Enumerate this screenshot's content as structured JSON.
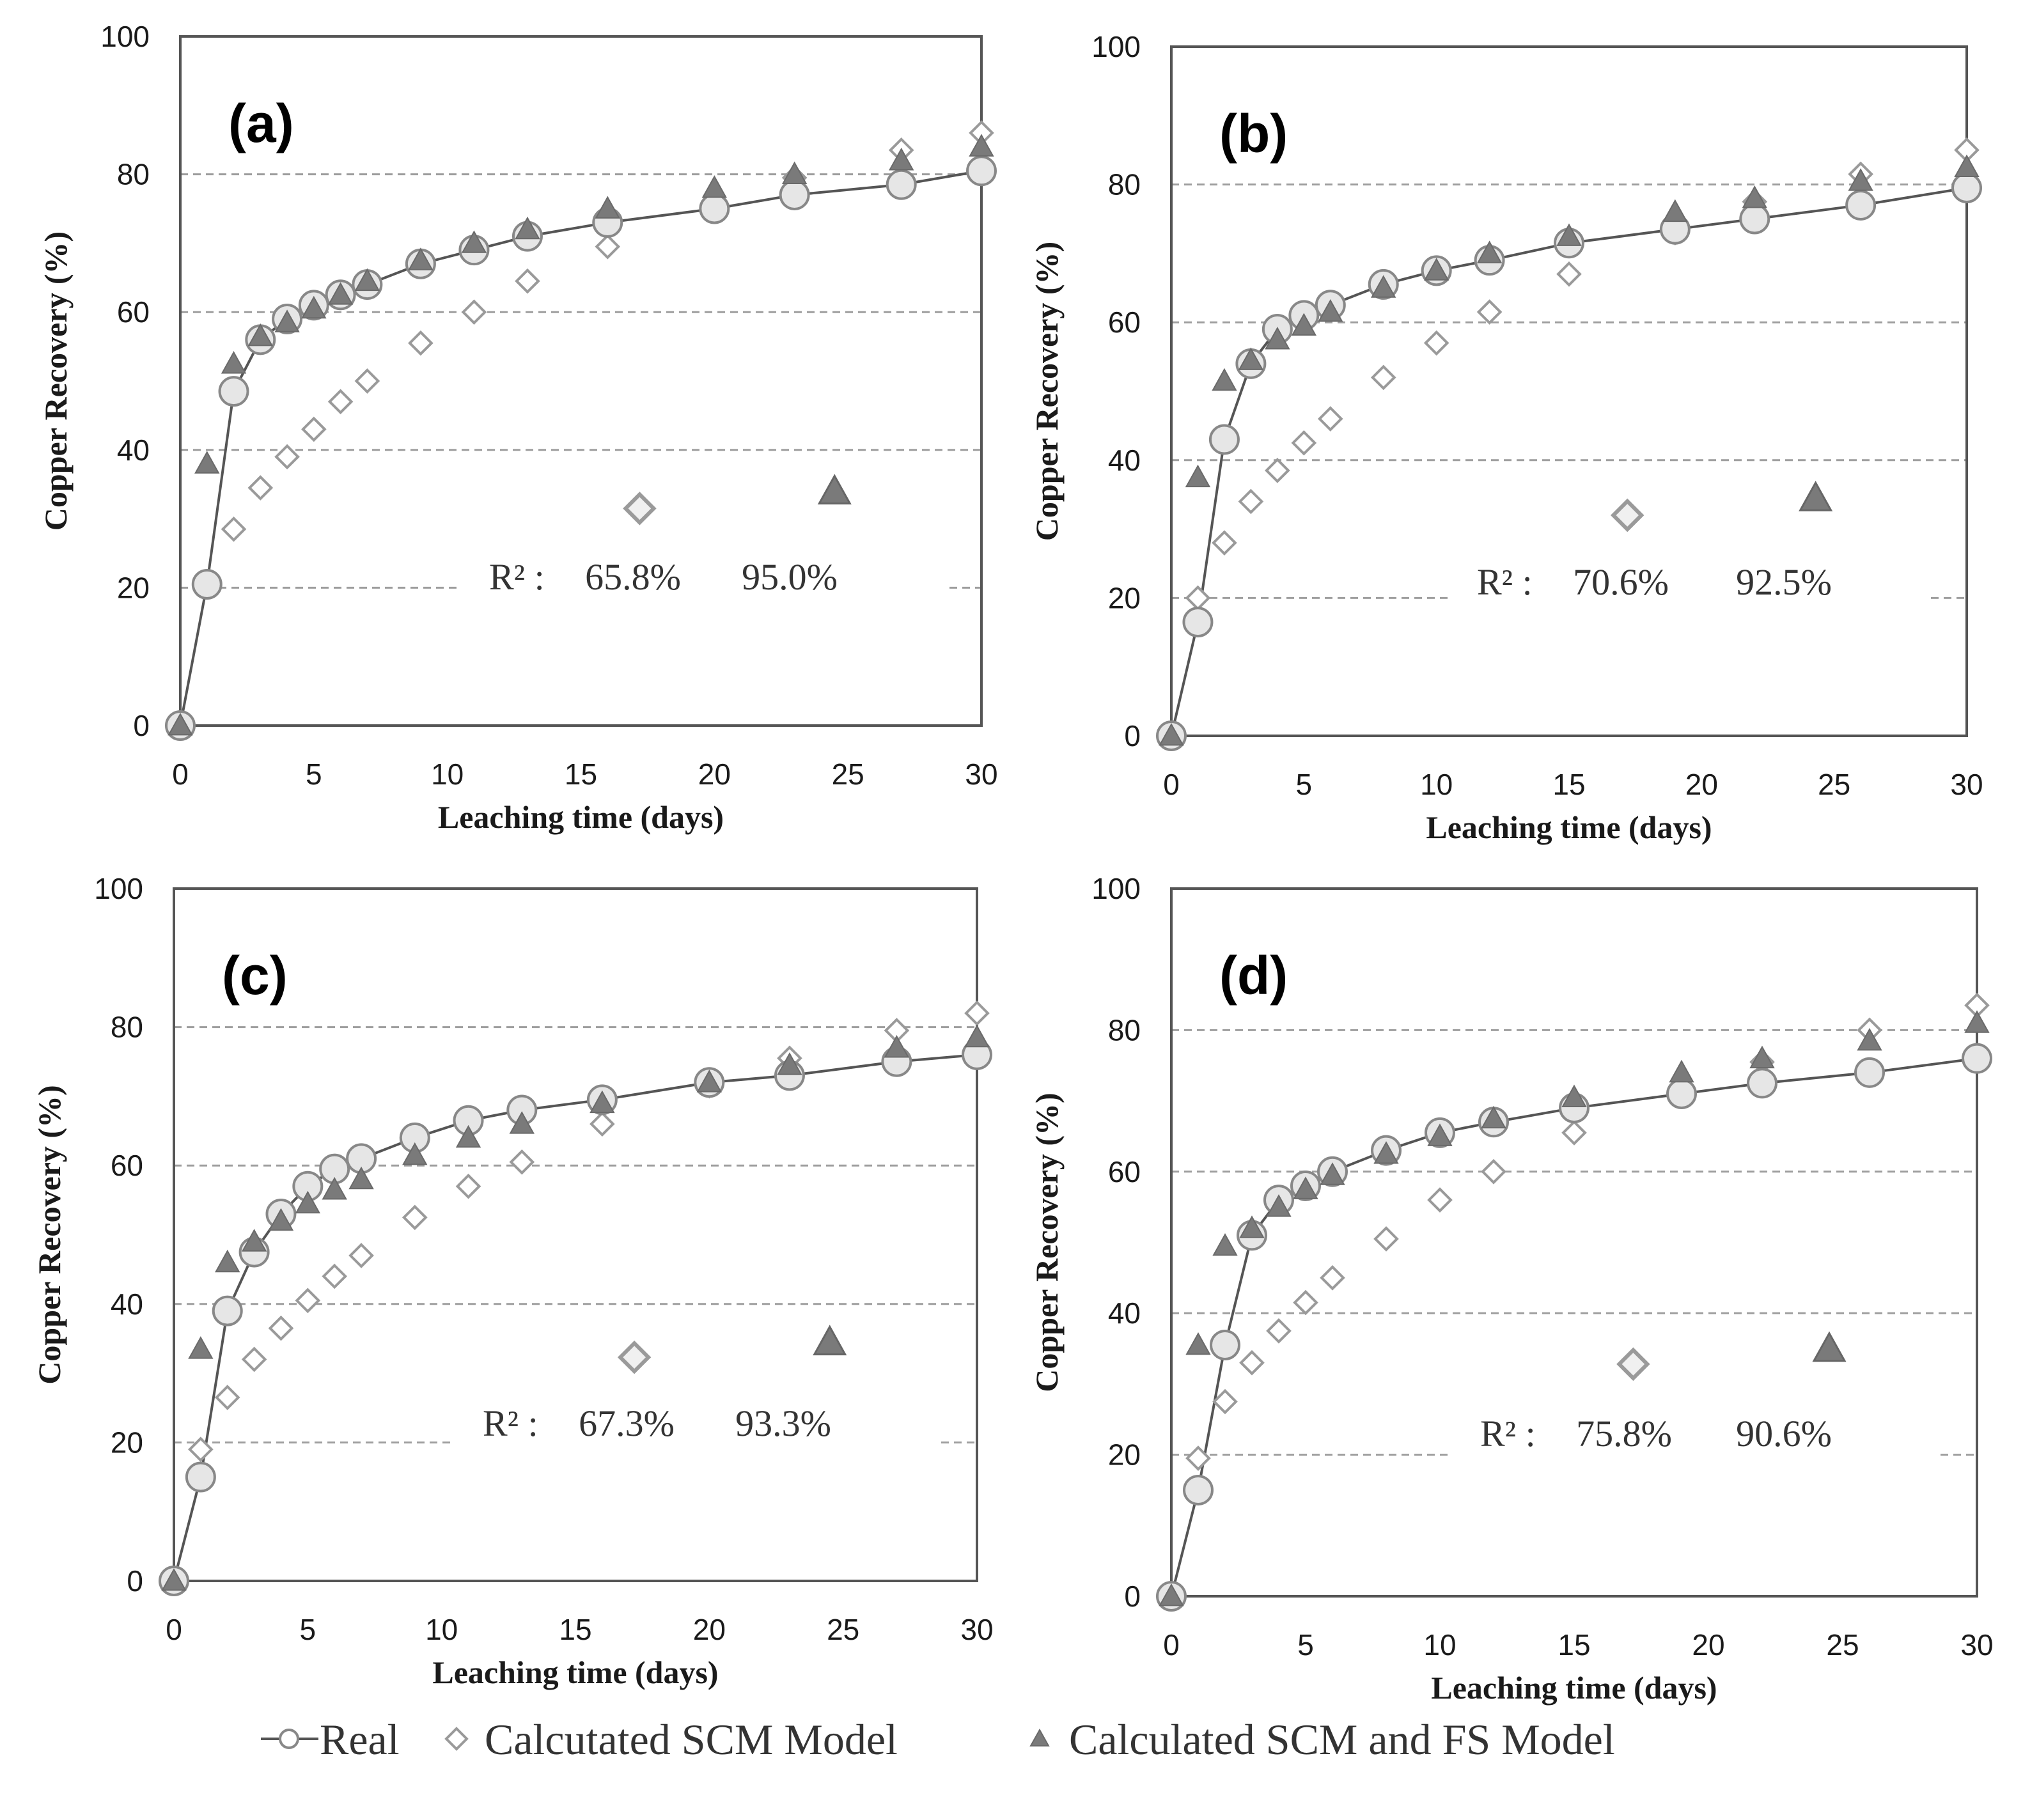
{
  "legend": {
    "real": "Real",
    "scm": "Calcutated SCM Model",
    "fs": "Calculated SCM and FS Model"
  },
  "colors": {
    "real_fill": "#e6e6e6",
    "real_stroke": "#888888",
    "line": "#555555",
    "scm_stroke": "#9a9a9a",
    "fs_fill": "#7a7a7a",
    "grid": "#9e9e9e",
    "frame": "#555555"
  },
  "chart_data": [
    {
      "type": "scatter",
      "panel_label": "(a)",
      "xlabel": "Leaching time (days)",
      "ylabel": "Copper Recovery (%)",
      "xlim": [
        0,
        30
      ],
      "ylim": [
        0,
        100
      ],
      "xticks": [
        0,
        5,
        10,
        15,
        20,
        25,
        30
      ],
      "yticks": [
        0,
        20,
        40,
        60,
        80,
        100
      ],
      "grid_y": [
        20,
        40,
        60,
        80
      ],
      "r2_label": "R² :",
      "r2_scm": "65.8%",
      "r2_fs": "95.0%",
      "series": [
        {
          "name": "Real",
          "x": [
            0,
            1,
            2,
            3,
            4,
            5,
            6,
            7,
            9,
            11,
            13,
            16,
            20,
            23,
            27,
            30
          ],
          "y": [
            0,
            20.5,
            48.5,
            56,
            59,
            61,
            62.5,
            64,
            67,
            69,
            71,
            73,
            75,
            77,
            78.5,
            80.5
          ]
        },
        {
          "name": "Calcutated SCM Model",
          "x": [
            0,
            1,
            2,
            3,
            4,
            5,
            6,
            7,
            9,
            11,
            13,
            16,
            20,
            23,
            27,
            30
          ],
          "y": [
            0,
            20.5,
            28.5,
            34.5,
            39,
            43,
            47,
            50,
            55.5,
            60,
            64.5,
            69.5,
            75.5,
            79.5,
            83.5,
            86
          ]
        },
        {
          "name": "Calculated SCM and FS Model",
          "x": [
            0,
            1,
            2,
            3,
            4,
            5,
            6,
            7,
            9,
            11,
            13,
            16,
            20,
            23,
            27,
            30
          ],
          "y": [
            0,
            38,
            52.5,
            56.5,
            58.5,
            60.5,
            62.5,
            64.5,
            67.5,
            70,
            72,
            75,
            78,
            80,
            82,
            84
          ]
        }
      ]
    },
    {
      "type": "scatter",
      "panel_label": "(b)",
      "xlabel": "Leaching time (days)",
      "ylabel": "Copper Recovery (%)",
      "xlim": [
        0,
        30
      ],
      "ylim": [
        0,
        100
      ],
      "xticks": [
        0,
        5,
        10,
        15,
        20,
        25,
        30
      ],
      "yticks": [
        0,
        20,
        40,
        60,
        80,
        100
      ],
      "grid_y": [
        20,
        40,
        60,
        80
      ],
      "r2_label": "R² :",
      "r2_scm": "70.6%",
      "r2_fs": "92.5%",
      "series": [
        {
          "name": "Real",
          "x": [
            0,
            1,
            2,
            3,
            4,
            5,
            6,
            8,
            10,
            12,
            15,
            19,
            22,
            26,
            30
          ],
          "y": [
            0,
            16.5,
            43,
            54,
            59,
            61,
            62.5,
            65.5,
            67.5,
            69,
            71.5,
            73.5,
            75,
            77,
            79.5
          ]
        },
        {
          "name": "Calcutated SCM Model",
          "x": [
            0,
            1,
            2,
            3,
            4,
            5,
            6,
            8,
            10,
            12,
            15,
            19,
            22,
            26,
            30
          ],
          "y": [
            0,
            20,
            28,
            34,
            38.5,
            42.5,
            46,
            52,
            57,
            61.5,
            67,
            73,
            77.5,
            81.5,
            85
          ]
        },
        {
          "name": "Calculated SCM and FS Model",
          "x": [
            0,
            1,
            2,
            3,
            4,
            5,
            6,
            8,
            10,
            12,
            15,
            19,
            22,
            26,
            30
          ],
          "y": [
            0,
            37.5,
            51.5,
            54.5,
            57.5,
            59.5,
            61.5,
            65,
            67.5,
            70,
            72.5,
            76,
            78,
            80.5,
            82.5
          ]
        }
      ]
    },
    {
      "type": "scatter",
      "panel_label": "(c)",
      "xlabel": "Leaching time (days)",
      "ylabel": "Copper Recovery (%)",
      "xlim": [
        0,
        30
      ],
      "ylim": [
        0,
        100
      ],
      "xticks": [
        0,
        5,
        10,
        15,
        20,
        25,
        30
      ],
      "yticks": [
        0,
        20,
        40,
        60,
        80,
        100
      ],
      "grid_y": [
        20,
        40,
        60,
        80
      ],
      "r2_label": "R² :",
      "r2_scm": "67.3%",
      "r2_fs": "93.3%",
      "series": [
        {
          "name": "Real",
          "x": [
            0,
            1,
            2,
            3,
            4,
            5,
            6,
            7,
            9,
            11,
            13,
            16,
            20,
            23,
            27,
            30
          ],
          "y": [
            0,
            15,
            39,
            47.5,
            53,
            57,
            59.5,
            61,
            64,
            66.5,
            68,
            69.5,
            72,
            73,
            75,
            76
          ]
        },
        {
          "name": "Calcutated SCM Model",
          "x": [
            0,
            1,
            2,
            3,
            4,
            5,
            6,
            7,
            9,
            11,
            13,
            16,
            20,
            23,
            27,
            30
          ],
          "y": [
            0,
            19,
            26.5,
            32,
            36.5,
            40.5,
            44,
            47,
            52.5,
            57,
            60.5,
            66,
            71.5,
            75.5,
            79.5,
            82
          ]
        },
        {
          "name": "Calculated SCM and FS Model",
          "x": [
            0,
            1,
            2,
            3,
            4,
            5,
            6,
            7,
            9,
            11,
            13,
            16,
            20,
            23,
            27,
            30
          ],
          "y": [
            0,
            33.5,
            46,
            49,
            52,
            54.5,
            56.5,
            58,
            61.5,
            64,
            66,
            69,
            72,
            74.5,
            77,
            78.5
          ]
        }
      ]
    },
    {
      "type": "scatter",
      "panel_label": "(d)",
      "xlabel": "Leaching time (days)",
      "ylabel": "Copper Recovery (%)",
      "xlim": [
        0,
        30
      ],
      "ylim": [
        0,
        100
      ],
      "xticks": [
        0,
        5,
        10,
        15,
        20,
        25,
        30
      ],
      "yticks": [
        0,
        20,
        40,
        60,
        80,
        100
      ],
      "grid_y": [
        20,
        40,
        60,
        80
      ],
      "r2_label": "R² :",
      "r2_scm": "75.8%",
      "r2_fs": "90.6%",
      "series": [
        {
          "name": "Real",
          "x": [
            0,
            1,
            2,
            3,
            4,
            5,
            6,
            8,
            10,
            12,
            15,
            19,
            22,
            26,
            30
          ],
          "y": [
            0,
            15,
            35.5,
            51,
            56,
            58,
            60,
            63,
            65.5,
            67,
            69,
            71,
            72.5,
            74,
            76
          ]
        },
        {
          "name": "Calcutated SCM Model",
          "x": [
            0,
            1,
            2,
            3,
            4,
            5,
            6,
            8,
            10,
            12,
            15,
            19,
            22,
            26,
            30
          ],
          "y": [
            0,
            19.5,
            27.5,
            33,
            37.5,
            41.5,
            45,
            50.5,
            56,
            60,
            65.5,
            71.5,
            75.5,
            80,
            83.5
          ]
        },
        {
          "name": "Calculated SCM and FS Model",
          "x": [
            0,
            1,
            2,
            3,
            4,
            5,
            6,
            8,
            10,
            12,
            15,
            19,
            22,
            26,
            30
          ],
          "y": [
            0,
            35.5,
            49.5,
            52,
            55,
            57.5,
            59.5,
            62.5,
            65,
            67.5,
            70.5,
            74,
            76,
            78.5,
            81
          ]
        }
      ]
    }
  ]
}
